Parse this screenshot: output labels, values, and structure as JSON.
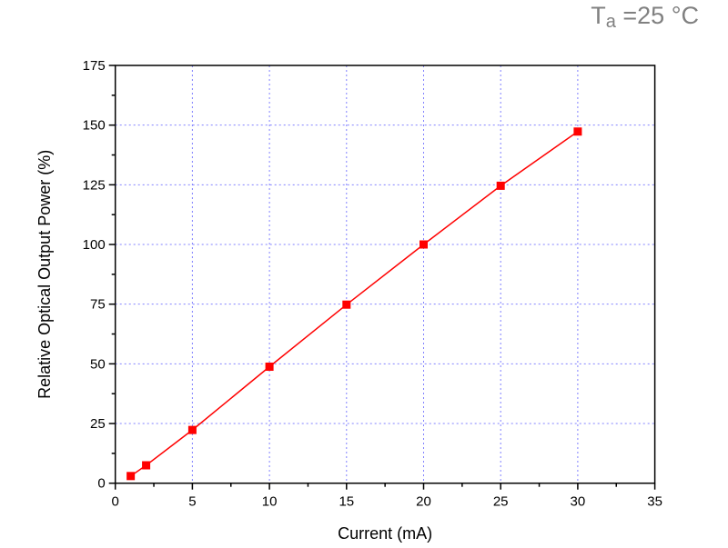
{
  "chart_data": {
    "type": "line",
    "title_main": "T",
    "title_sub": "a",
    "title_rest": " =25 °C",
    "xlabel": "Current (mA)",
    "ylabel": "Relative Optical Output Power (%)",
    "xlim": [
      0,
      35
    ],
    "ylim": [
      0,
      175
    ],
    "xticks": [
      0,
      5,
      10,
      15,
      20,
      25,
      30,
      35
    ],
    "yticks": [
      0,
      25,
      50,
      75,
      100,
      125,
      150,
      175
    ],
    "grid": true,
    "series": [
      {
        "x": [
          1,
          2,
          5,
          10,
          15,
          20,
          25,
          30
        ],
        "y": [
          3,
          7.5,
          22.3,
          48.8,
          74.8,
          100,
          124.6,
          147.3
        ]
      }
    ],
    "colors": {
      "series": "#ff0000",
      "grid": "#8080ff",
      "title": "#808080"
    }
  }
}
